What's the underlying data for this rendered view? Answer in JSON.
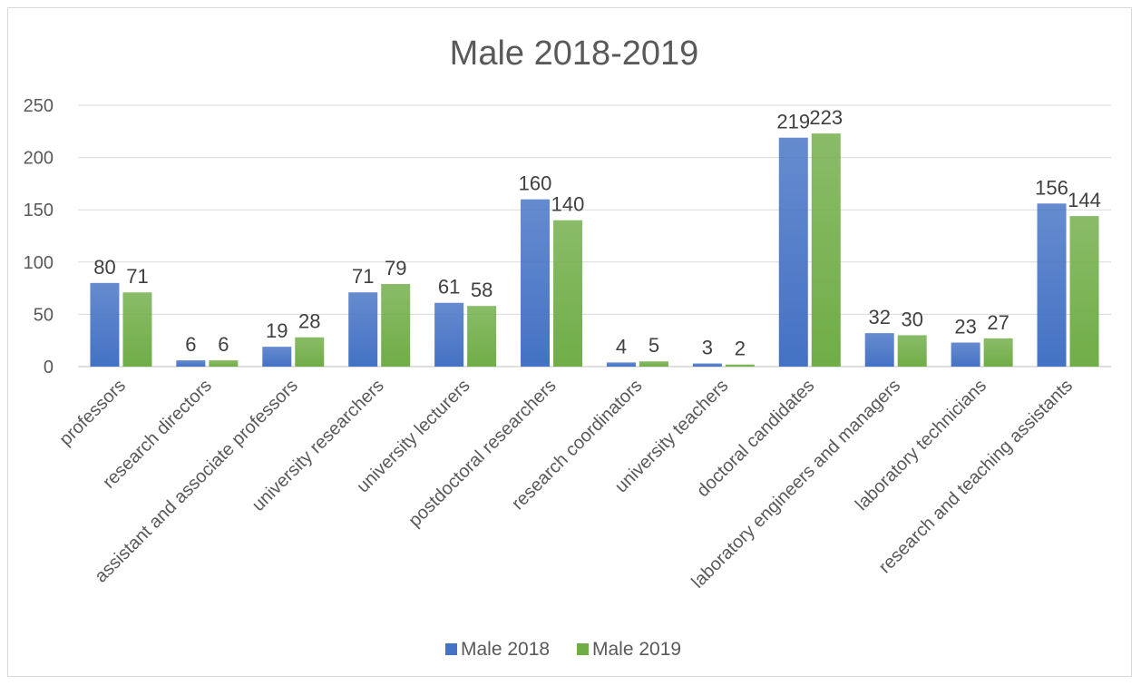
{
  "chart_data": {
    "type": "bar",
    "title": "Male 2018-2019",
    "categories": [
      "professors",
      "research directors",
      "assistant and associate professors",
      "university researchers",
      "university lecturers",
      "postdoctoral researchers",
      "research coordinators",
      "university teachers",
      "doctoral candidates",
      "laboratory engineers and managers",
      "laboratory technicians",
      "research and teaching assistants"
    ],
    "series": [
      {
        "name": "Male 2018",
        "color": "#4472c4",
        "values": [
          80,
          6,
          19,
          71,
          61,
          160,
          4,
          3,
          219,
          32,
          23,
          156
        ]
      },
      {
        "name": "Male 2019",
        "color": "#70ad47",
        "values": [
          71,
          6,
          28,
          79,
          58,
          140,
          5,
          2,
          223,
          30,
          27,
          144
        ]
      }
    ],
    "ylim": [
      0,
      250
    ],
    "yticks": [
      0,
      50,
      100,
      150,
      200,
      250
    ],
    "grid": true,
    "legend_position": "bottom"
  }
}
